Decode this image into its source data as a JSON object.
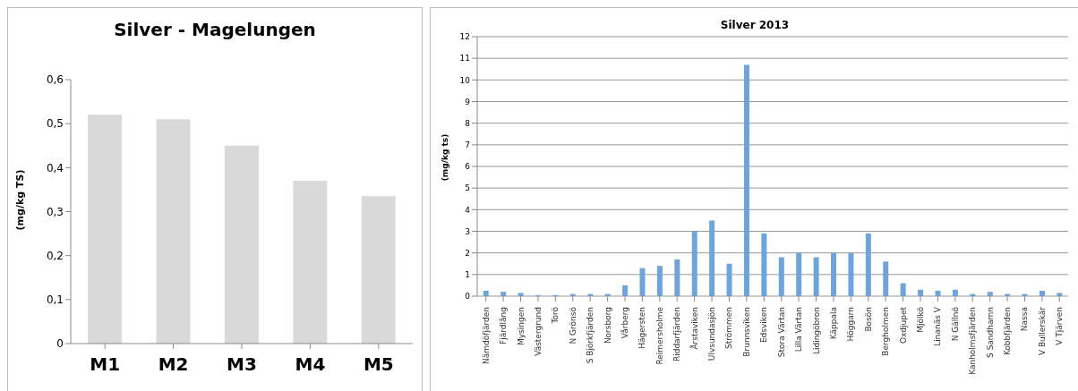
{
  "chart_data": [
    {
      "type": "bar",
      "title": "Silver - Magelungen",
      "ylabel": "(mg/kg TS)",
      "categories": [
        "M1",
        "M2",
        "M3",
        "M4",
        "M5"
      ],
      "values": [
        0.52,
        0.51,
        0.45,
        0.37,
        0.335
      ],
      "color": "#d9d9d9",
      "ylim": [
        0,
        0.6
      ],
      "yticks": [
        0,
        {
          "value": 0.1,
          "label": "0,1"
        },
        {
          "value": 0.2,
          "label": "0,2"
        },
        {
          "value": 0.3,
          "label": "0,3"
        },
        {
          "value": 0.4,
          "label": "0,4"
        },
        {
          "value": 0.5,
          "label": "0,5"
        },
        {
          "value": 0.6,
          "label": "0,6"
        }
      ],
      "grid": false
    },
    {
      "type": "bar",
      "title": "Silver 2013",
      "ylabel": "(mg/kg ts)",
      "categories": [
        "Nämdöfjärden",
        "Fjärdlång",
        "Mysingen",
        "Västergrund",
        "Torö",
        "N Grönsö",
        "S Björkfjärden",
        "Norsborg",
        "Vårberg",
        "Hägersten",
        "Reimersholme",
        "Riddarfjärden",
        "Årstaviken",
        "Ulvsundasjön",
        "Strömmen",
        "Brunnsviken",
        "Edsviken",
        "Stora Värtan",
        "Lilla Värtan",
        "Lidingöbron",
        "Käppala",
        "Höggarn",
        "Bosön",
        "Bergholmen",
        "Oxdjupet",
        "Mjölkö",
        "Linanäs V",
        "N Gällnö",
        "Kanholmsfjärden",
        "S Sandhamn",
        "Kobbfjärden",
        "Nassa",
        "V Bullerskär",
        "V Tjärven"
      ],
      "values": [
        0.25,
        0.2,
        0.15,
        0.05,
        0.05,
        0.1,
        0.1,
        0.1,
        0.5,
        1.3,
        1.4,
        1.7,
        3.0,
        3.5,
        1.5,
        10.7,
        2.9,
        1.8,
        2.0,
        1.8,
        2.0,
        2.0,
        2.9,
        1.6,
        0.6,
        0.3,
        0.25,
        0.3,
        0.1,
        0.2,
        0.1,
        0.1,
        0.25,
        0.15
      ],
      "color": "#6fa3dc",
      "ylim": [
        0,
        12
      ],
      "yticks": [
        0,
        1,
        2,
        3,
        4,
        5,
        6,
        7,
        8,
        9,
        10,
        11,
        12
      ],
      "grid": "y"
    }
  ]
}
